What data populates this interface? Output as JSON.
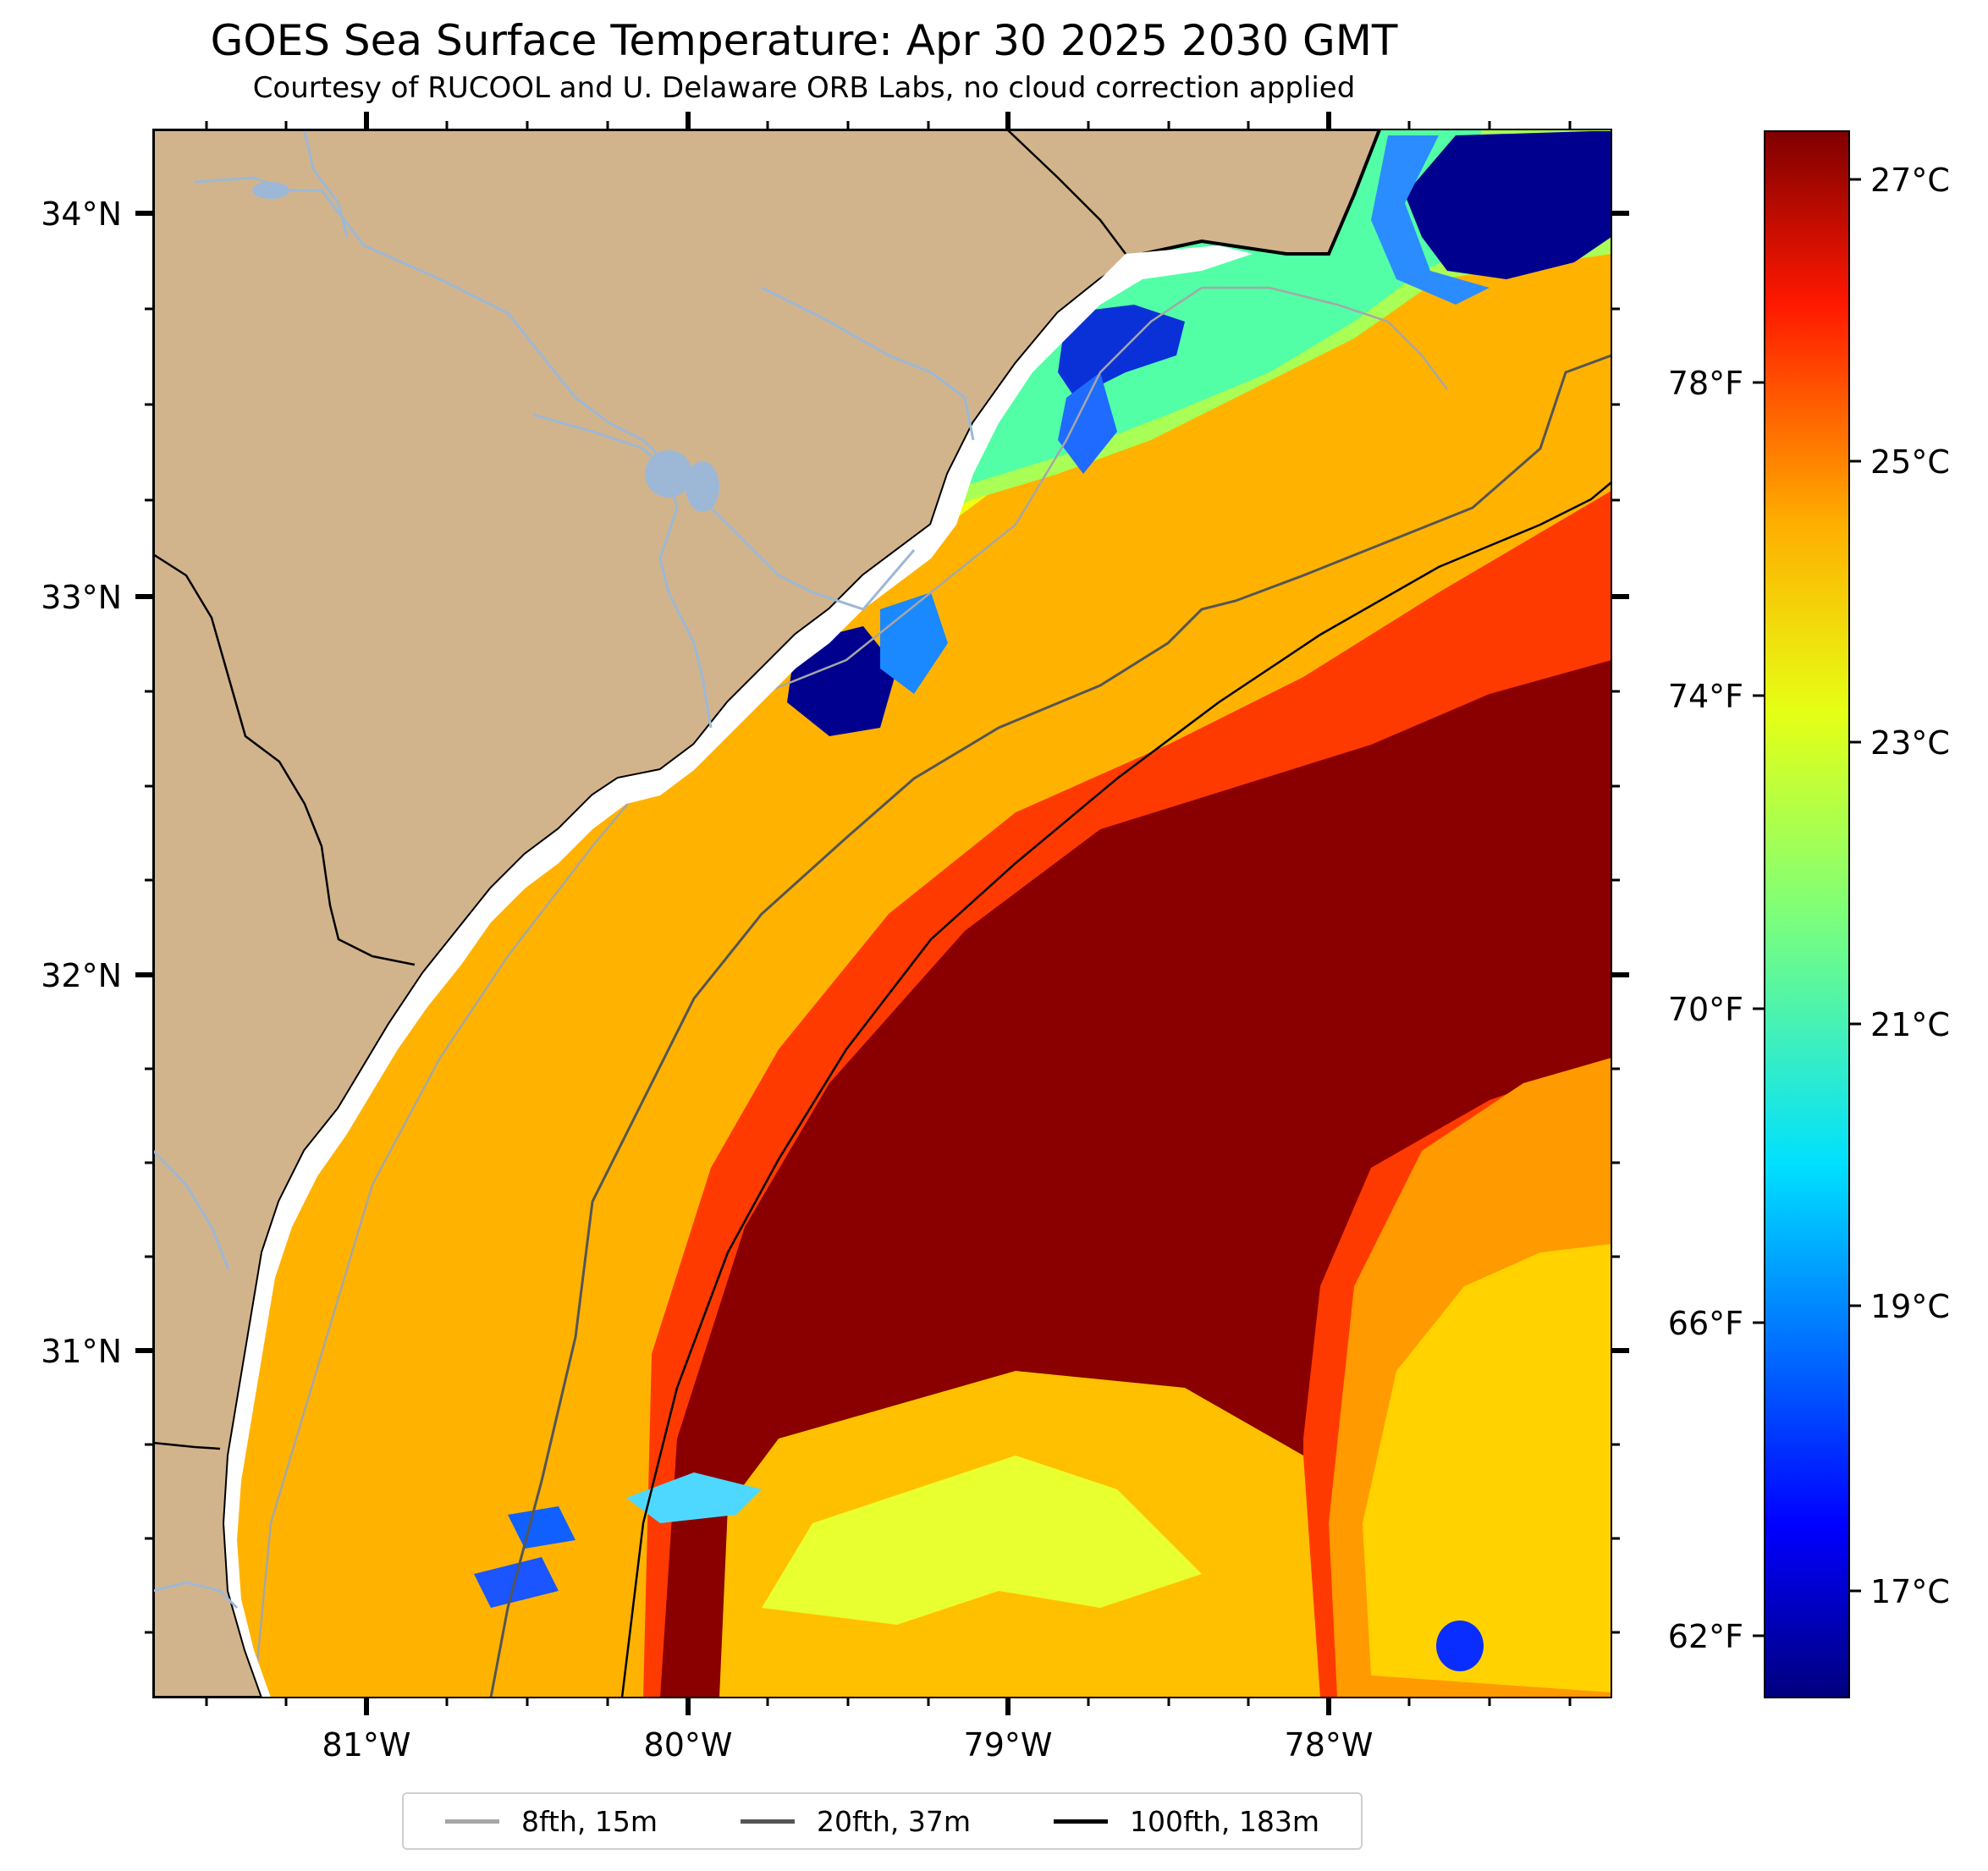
{
  "title": "GOES Sea Surface Temperature: Apr 30 2025 2030 GMT",
  "subtitle": "Courtesy of RUCOOL and U. Delaware ORB Labs, no cloud correction applied",
  "map": {
    "lat_labels": [
      "34°N",
      "33°N",
      "32°N",
      "31°N"
    ],
    "lon_labels": [
      "81°W",
      "80°W",
      "79°W",
      "78°W"
    ]
  },
  "colorbar": {
    "colormap": "jet",
    "celsius_labels": [
      "27°C",
      "25°C",
      "23°C",
      "21°C",
      "19°C",
      "17°C"
    ],
    "fahrenheit_labels": [
      "78°F",
      "74°F",
      "70°F",
      "66°F",
      "62°F"
    ],
    "celsius_range": [
      16.0,
      27.4
    ]
  },
  "legend": {
    "items": [
      {
        "label": "8fth, 15m",
        "color": "#a6a6a6"
      },
      {
        "label": "20fth, 37m",
        "color": "#555555"
      },
      {
        "label": "100fth, 183m",
        "color": "#000000"
      }
    ]
  },
  "colors": {
    "land": "#d2b48c",
    "rivers": "#9db8d6"
  }
}
